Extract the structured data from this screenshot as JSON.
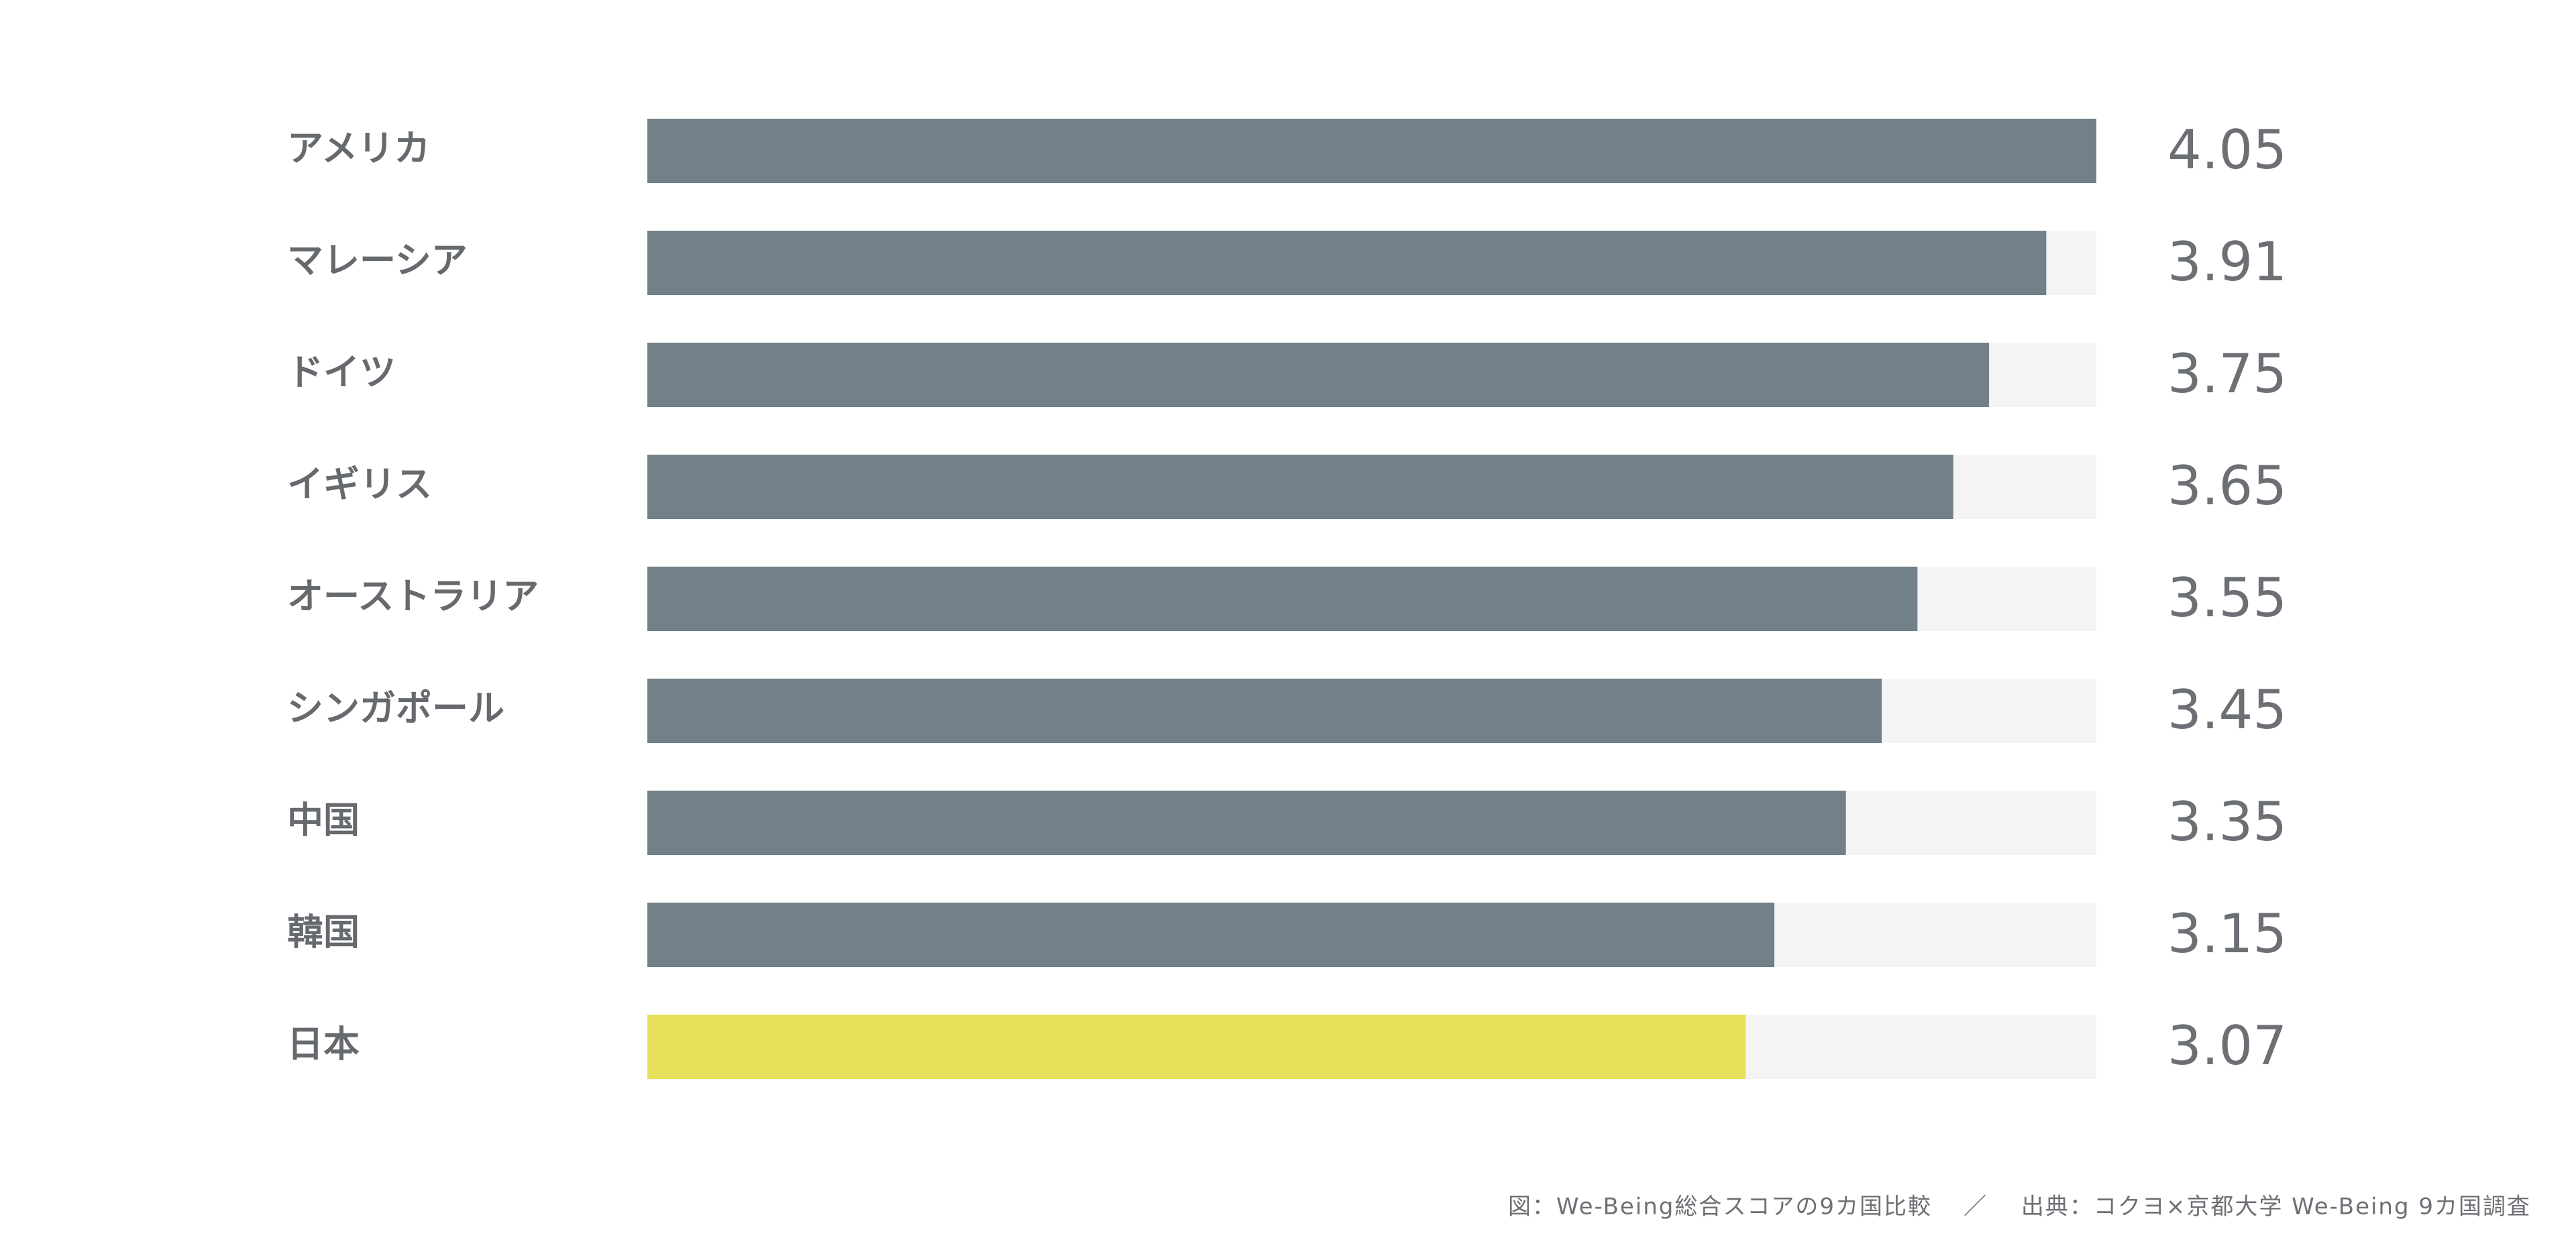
{
  "chart_data": {
    "type": "bar",
    "orientation": "horizontal",
    "categories": [
      "アメリカ",
      "マレーシア",
      "ドイツ",
      "イギリス",
      "オーストラリア",
      "シンガポール",
      "中国",
      "韓国",
      "日本"
    ],
    "values": [
      4.05,
      3.91,
      3.75,
      3.65,
      3.55,
      3.45,
      3.35,
      3.15,
      3.07
    ],
    "colors": [
      "#718089",
      "#718089",
      "#718089",
      "#718089",
      "#718089",
      "#718089",
      "#718089",
      "#718089",
      "#e6e05a"
    ],
    "track_color": "#f4f4f4",
    "xlim": [
      0,
      4.05
    ],
    "caption": "図：We-Being総合スコアの9カ国比較",
    "separator": "／",
    "source": "出典：コクヨ×京都大学 We-Being 9カ国調査"
  }
}
